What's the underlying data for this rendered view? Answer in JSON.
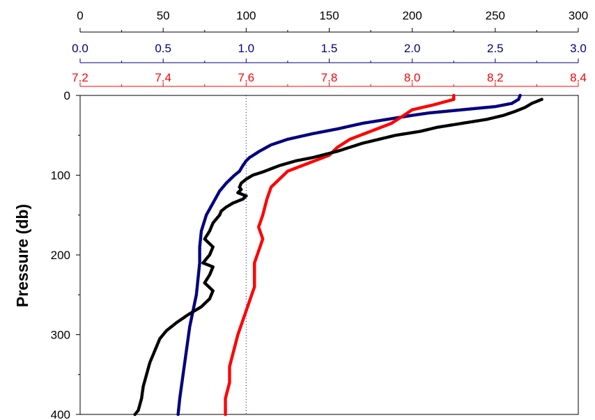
{
  "chart_data": {
    "type": "line",
    "title": "",
    "ylabel": "Pressure (db)",
    "y_axis": {
      "ylim": [
        0,
        400
      ],
      "ticks": [
        "0",
        "100",
        "200",
        "300",
        "400"
      ],
      "inverted": true
    },
    "x_axes": [
      {
        "id": "axis-black",
        "color": "#000000",
        "xlim": [
          0,
          300
        ],
        "ticks": [
          "0",
          "50",
          "100",
          "150",
          "200",
          "250",
          "300"
        ]
      },
      {
        "id": "axis-blue",
        "color": "#000080",
        "xlim": [
          0.0,
          3.0
        ],
        "ticks": [
          "0.0",
          "0.5",
          "1.0",
          "1.5",
          "2.0",
          "2.5",
          "3.0"
        ]
      },
      {
        "id": "axis-red",
        "color": "#ff0000",
        "xlim": [
          7.2,
          8.4
        ],
        "ticks": [
          "7.2",
          "7.4",
          "7.6",
          "7.8",
          "8.0",
          "8.2",
          "8.4"
        ]
      }
    ],
    "reference_line": {
      "axis": 0,
      "value": 100,
      "color": "#0000c0",
      "style": "dotted"
    },
    "grid": false,
    "legend": "none",
    "series": [
      {
        "axis": 1,
        "color": "#000080",
        "points": [
          [
            2.65,
            0
          ],
          [
            2.64,
            5
          ],
          [
            2.6,
            10
          ],
          [
            2.5,
            14
          ],
          [
            2.3,
            18
          ],
          [
            2.2,
            20
          ],
          [
            2.1,
            22
          ],
          [
            2.0,
            25
          ],
          [
            1.85,
            30
          ],
          [
            1.7,
            35
          ],
          [
            1.55,
            42
          ],
          [
            1.4,
            48
          ],
          [
            1.25,
            55
          ],
          [
            1.15,
            62
          ],
          [
            1.08,
            70
          ],
          [
            1.02,
            78
          ],
          [
            1.0,
            82
          ],
          [
            0.98,
            88
          ],
          [
            0.96,
            95
          ],
          [
            0.93,
            100
          ],
          [
            0.88,
            110
          ],
          [
            0.84,
            120
          ],
          [
            0.8,
            135
          ],
          [
            0.76,
            150
          ],
          [
            0.73,
            170
          ],
          [
            0.72,
            190
          ],
          [
            0.72,
            210
          ],
          [
            0.71,
            230
          ],
          [
            0.7,
            250
          ],
          [
            0.68,
            270
          ],
          [
            0.66,
            290
          ],
          [
            0.64,
            320
          ],
          [
            0.62,
            350
          ],
          [
            0.6,
            380
          ],
          [
            0.59,
            400
          ]
        ]
      },
      {
        "axis": 2,
        "color": "#ff0000",
        "points": [
          [
            8.1,
            0
          ],
          [
            8.1,
            5
          ],
          [
            8.05,
            12
          ],
          [
            8.0,
            18
          ],
          [
            7.98,
            25
          ],
          [
            7.95,
            35
          ],
          [
            7.9,
            45
          ],
          [
            7.85,
            55
          ],
          [
            7.82,
            65
          ],
          [
            7.8,
            75
          ],
          [
            7.75,
            85
          ],
          [
            7.7,
            95
          ],
          [
            7.68,
            105
          ],
          [
            7.66,
            115
          ],
          [
            7.65,
            130
          ],
          [
            7.64,
            150
          ],
          [
            7.63,
            165
          ],
          [
            7.64,
            180
          ],
          [
            7.63,
            195
          ],
          [
            7.62,
            210
          ],
          [
            7.62,
            225
          ],
          [
            7.62,
            240
          ],
          [
            7.61,
            255
          ],
          [
            7.6,
            270
          ],
          [
            7.59,
            285
          ],
          [
            7.58,
            300
          ],
          [
            7.57,
            320
          ],
          [
            7.56,
            340
          ],
          [
            7.56,
            360
          ],
          [
            7.55,
            380
          ],
          [
            7.55,
            400
          ]
        ]
      },
      {
        "axis": 0,
        "color": "#000000",
        "points": [
          [
            278,
            5
          ],
          [
            272,
            10
          ],
          [
            268,
            15
          ],
          [
            262,
            20
          ],
          [
            255,
            25
          ],
          [
            245,
            30
          ],
          [
            230,
            35
          ],
          [
            215,
            40
          ],
          [
            205,
            45
          ],
          [
            190,
            50
          ],
          [
            180,
            55
          ],
          [
            170,
            60
          ],
          [
            155,
            70
          ],
          [
            140,
            78
          ],
          [
            130,
            82
          ],
          [
            120,
            88
          ],
          [
            115,
            92
          ],
          [
            110,
            96
          ],
          [
            104,
            100
          ],
          [
            100,
            105
          ],
          [
            97,
            110
          ],
          [
            96,
            115
          ],
          [
            97,
            118
          ],
          [
            95,
            122
          ],
          [
            100,
            126
          ],
          [
            98,
            130
          ],
          [
            92,
            135
          ],
          [
            88,
            140
          ],
          [
            85,
            145
          ],
          [
            84,
            150
          ],
          [
            80,
            160
          ],
          [
            78,
            170
          ],
          [
            75,
            180
          ],
          [
            80,
            190
          ],
          [
            78,
            200
          ],
          [
            74,
            210
          ],
          [
            80,
            215
          ],
          [
            78,
            225
          ],
          [
            75,
            235
          ],
          [
            80,
            245
          ],
          [
            78,
            255
          ],
          [
            73,
            265
          ],
          [
            65,
            275
          ],
          [
            58,
            285
          ],
          [
            52,
            295
          ],
          [
            48,
            305
          ],
          [
            45,
            320
          ],
          [
            42,
            335
          ],
          [
            40,
            350
          ],
          [
            38,
            365
          ],
          [
            37,
            380
          ],
          [
            35,
            395
          ],
          [
            33,
            400
          ]
        ]
      }
    ]
  }
}
